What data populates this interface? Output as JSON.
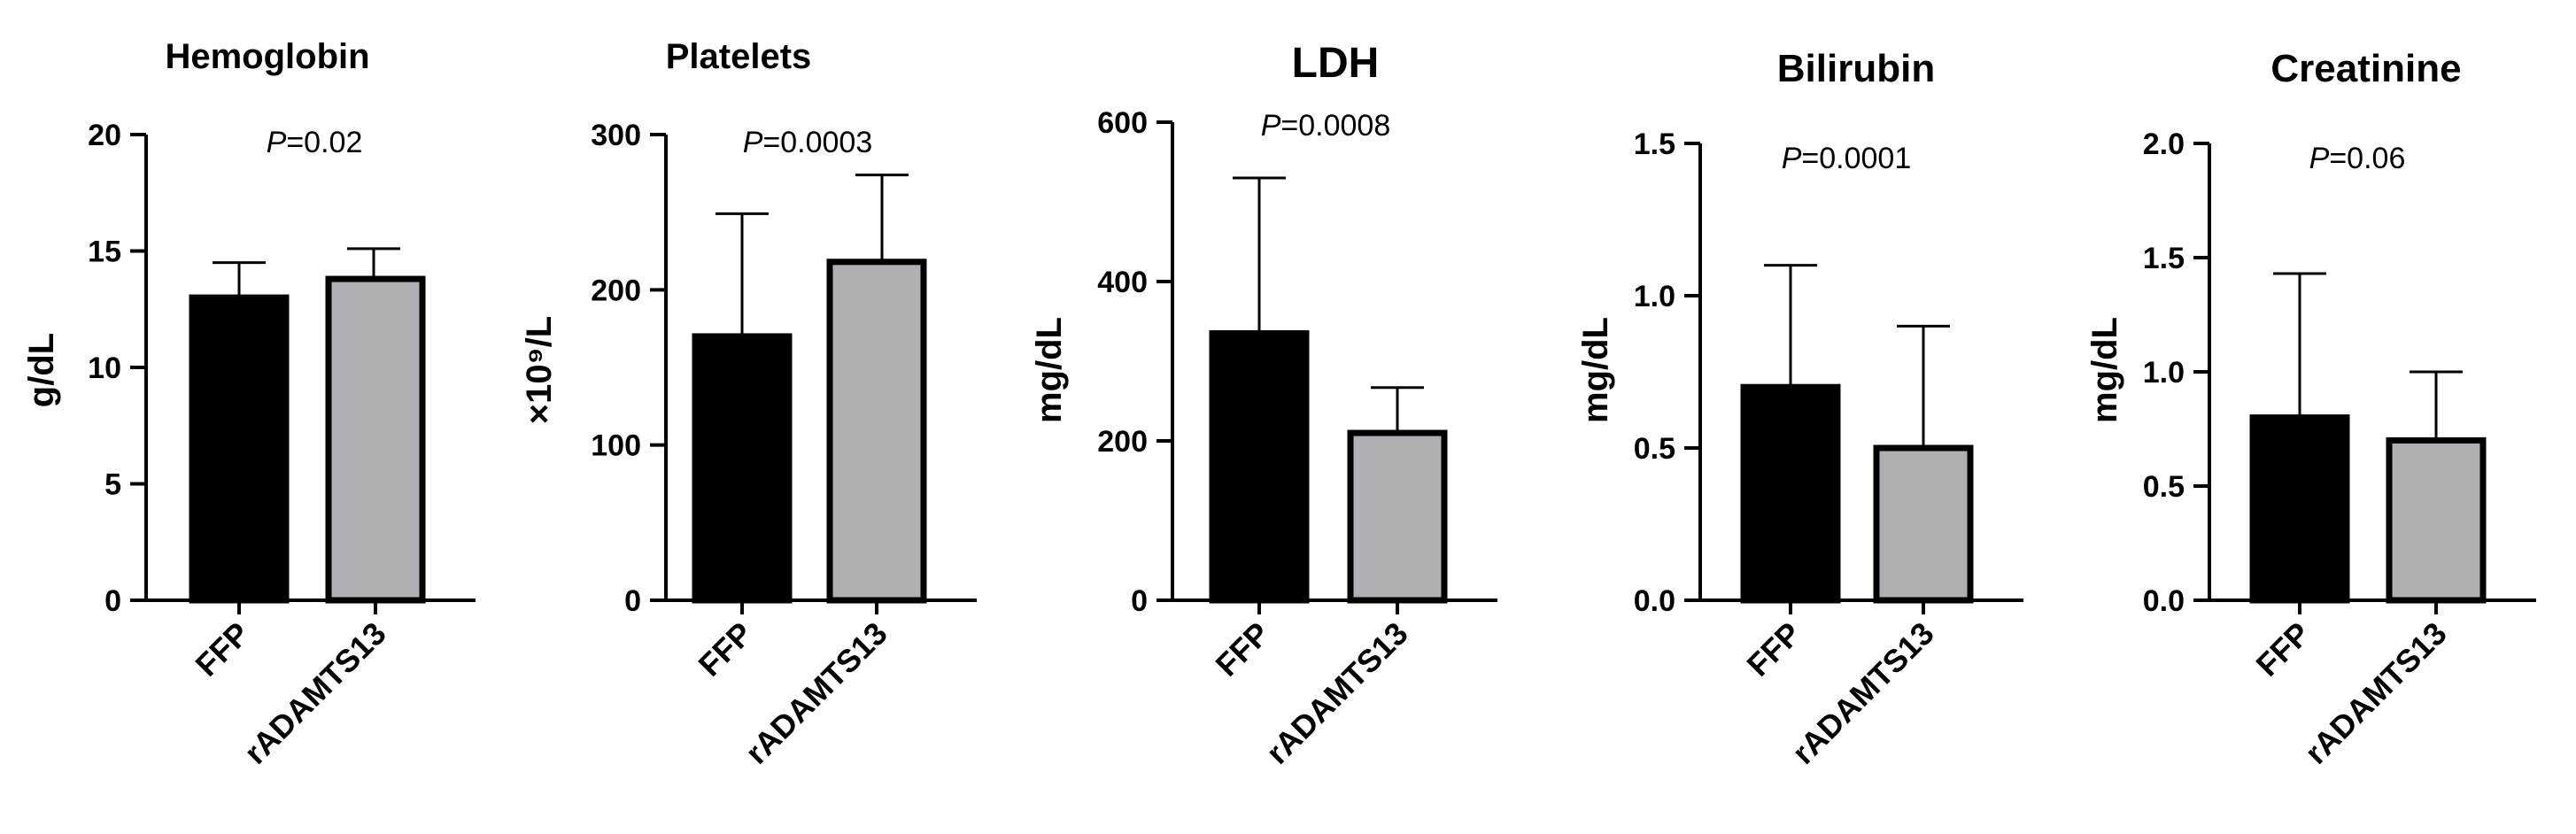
{
  "colors": {
    "FFP": "#000000",
    "rADAMTS13": "#b0afb3",
    "bar_outline": "#000000"
  },
  "chart_data": [
    {
      "type": "bar",
      "title": "Hemoglobin",
      "ylabel": "g/dL",
      "ylim": [
        0,
        20
      ],
      "yticks": [
        0,
        5,
        10,
        15,
        20
      ],
      "tick_labels": [
        "0",
        "5",
        "10",
        "15",
        "20"
      ],
      "categories": [
        "FFP",
        "rADAMTS13"
      ],
      "values": [
        13.0,
        13.8
      ],
      "error_upper": [
        14.5,
        15.1
      ],
      "p_prefix": "P",
      "p_value": "=0.02"
    },
    {
      "type": "bar",
      "title": "Platelets",
      "ylabel": "×10⁹/L",
      "ylim": [
        0,
        300
      ],
      "yticks": [
        0,
        100,
        200,
        300
      ],
      "tick_labels": [
        "0",
        "100",
        "200",
        "300"
      ],
      "categories": [
        "FFP",
        "rADAMTS13"
      ],
      "values": [
        170,
        218
      ],
      "error_upper": [
        249,
        274
      ],
      "p_prefix": "P",
      "p_value": "=0.0003"
    },
    {
      "type": "bar",
      "title": "LDH",
      "ylabel": "mg/dL",
      "ylim": [
        0,
        600
      ],
      "yticks": [
        0,
        200,
        400,
        600
      ],
      "tick_labels": [
        "0",
        "200",
        "400",
        "600"
      ],
      "categories": [
        "FFP",
        "rADAMTS13"
      ],
      "values": [
        335,
        210
      ],
      "error_upper": [
        530,
        267
      ],
      "p_prefix": "P",
      "p_value": "=0.0008"
    },
    {
      "type": "bar",
      "title": "Bilirubin",
      "ylabel": "mg/dL",
      "ylim": [
        0,
        1.5
      ],
      "yticks": [
        0,
        0.5,
        1.0,
        1.5
      ],
      "tick_labels": [
        "0.0",
        "0.5",
        "1.0",
        "1.5"
      ],
      "categories": [
        "FFP",
        "rADAMTS13"
      ],
      "values": [
        0.7,
        0.5
      ],
      "error_upper": [
        1.1,
        0.9
      ],
      "p_prefix": "P",
      "p_value": "=0.0001"
    },
    {
      "type": "bar",
      "title": "Creatinine",
      "ylabel": "mg/dL",
      "ylim": [
        0,
        2.0
      ],
      "yticks": [
        0,
        0.5,
        1.0,
        1.5,
        2.0
      ],
      "tick_labels": [
        "0.0",
        "0.5",
        "1.0",
        "1.5",
        "2.0"
      ],
      "categories": [
        "FFP",
        "rADAMTS13"
      ],
      "values": [
        0.8,
        0.7
      ],
      "error_upper": [
        1.43,
        1.0
      ],
      "p_prefix": "P",
      "p_value": "=0.06"
    }
  ]
}
